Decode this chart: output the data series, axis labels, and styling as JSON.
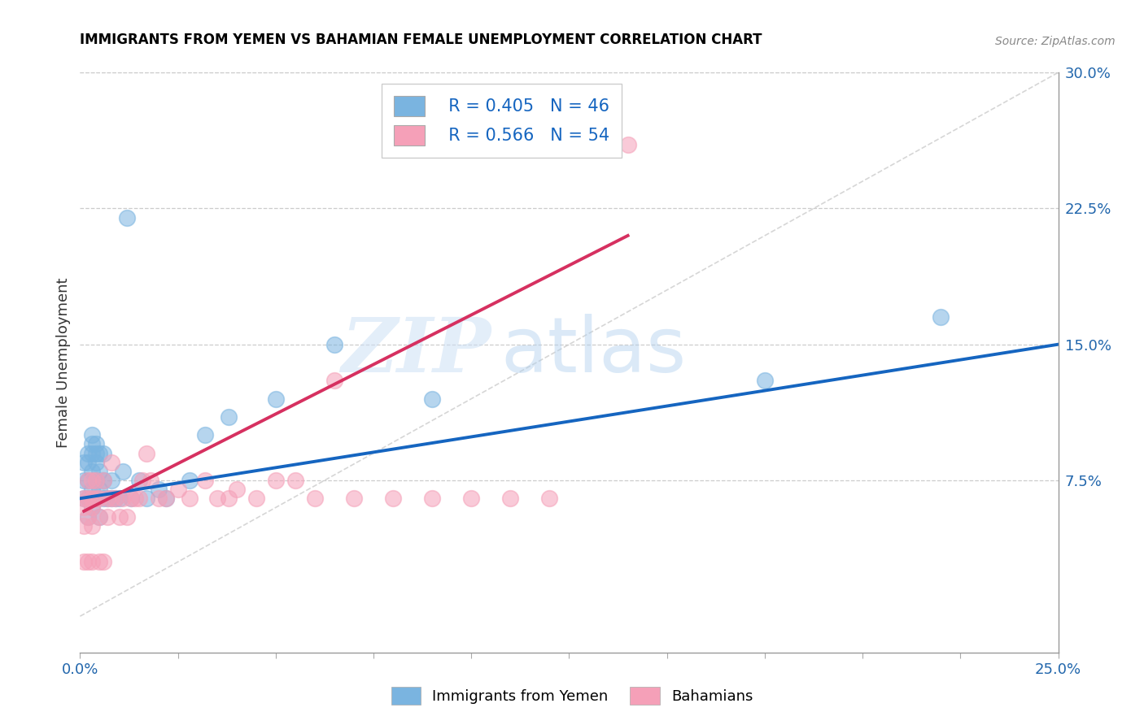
{
  "title": "IMMIGRANTS FROM YEMEN VS BAHAMIAN FEMALE UNEMPLOYMENT CORRELATION CHART",
  "source": "Source: ZipAtlas.com",
  "ylabel": "Female Unemployment",
  "xlim": [
    0,
    0.25
  ],
  "ylim": [
    -0.02,
    0.3
  ],
  "yticks_right": [
    0.075,
    0.15,
    0.225,
    0.3
  ],
  "yticklabels_right": [
    "7.5%",
    "15.0%",
    "22.5%",
    "30.0%"
  ],
  "legend_r1": "R = 0.405",
  "legend_n1": "N = 46",
  "legend_r2": "R = 0.566",
  "legend_n2": "N = 54",
  "blue_color": "#7ab4e0",
  "pink_color": "#f5a0b8",
  "blue_line_color": "#1565c0",
  "pink_line_color": "#d63060",
  "diag_color": "#cccccc",
  "watermark_zip": "ZIP",
  "watermark_atlas": "atlas",
  "blue_scatter_x": [
    0.001,
    0.001,
    0.001,
    0.002,
    0.002,
    0.002,
    0.002,
    0.002,
    0.003,
    0.003,
    0.003,
    0.003,
    0.003,
    0.003,
    0.004,
    0.004,
    0.004,
    0.004,
    0.004,
    0.005,
    0.005,
    0.005,
    0.005,
    0.006,
    0.006,
    0.006,
    0.007,
    0.008,
    0.008,
    0.009,
    0.01,
    0.011,
    0.012,
    0.013,
    0.015,
    0.017,
    0.02,
    0.022,
    0.028,
    0.032,
    0.038,
    0.05,
    0.065,
    0.09,
    0.175,
    0.22
  ],
  "blue_scatter_y": [
    0.065,
    0.075,
    0.085,
    0.055,
    0.065,
    0.075,
    0.085,
    0.09,
    0.06,
    0.07,
    0.08,
    0.09,
    0.095,
    0.1,
    0.065,
    0.075,
    0.085,
    0.09,
    0.095,
    0.055,
    0.07,
    0.08,
    0.09,
    0.065,
    0.075,
    0.09,
    0.065,
    0.065,
    0.075,
    0.065,
    0.065,
    0.08,
    0.22,
    0.065,
    0.075,
    0.065,
    0.07,
    0.065,
    0.075,
    0.1,
    0.11,
    0.12,
    0.15,
    0.12,
    0.13,
    0.165
  ],
  "pink_scatter_x": [
    0.001,
    0.001,
    0.001,
    0.001,
    0.002,
    0.002,
    0.002,
    0.002,
    0.003,
    0.003,
    0.003,
    0.003,
    0.003,
    0.004,
    0.004,
    0.005,
    0.005,
    0.005,
    0.006,
    0.006,
    0.007,
    0.007,
    0.008,
    0.008,
    0.009,
    0.01,
    0.011,
    0.012,
    0.013,
    0.014,
    0.015,
    0.016,
    0.017,
    0.018,
    0.02,
    0.022,
    0.025,
    0.028,
    0.032,
    0.035,
    0.038,
    0.04,
    0.045,
    0.05,
    0.055,
    0.06,
    0.065,
    0.07,
    0.08,
    0.09,
    0.1,
    0.11,
    0.12,
    0.14
  ],
  "pink_scatter_y": [
    0.03,
    0.05,
    0.06,
    0.065,
    0.03,
    0.055,
    0.065,
    0.075,
    0.03,
    0.05,
    0.06,
    0.065,
    0.075,
    0.065,
    0.075,
    0.03,
    0.055,
    0.065,
    0.03,
    0.075,
    0.055,
    0.065,
    0.065,
    0.085,
    0.065,
    0.055,
    0.065,
    0.055,
    0.065,
    0.065,
    0.065,
    0.075,
    0.09,
    0.075,
    0.065,
    0.065,
    0.07,
    0.065,
    0.075,
    0.065,
    0.065,
    0.07,
    0.065,
    0.075,
    0.075,
    0.065,
    0.13,
    0.065,
    0.065,
    0.065,
    0.065,
    0.065,
    0.065,
    0.26
  ],
  "blue_line_x": [
    0.0,
    0.25
  ],
  "blue_line_y": [
    0.065,
    0.15
  ],
  "pink_line_x": [
    0.001,
    0.14
  ],
  "pink_line_y": [
    0.058,
    0.21
  ]
}
